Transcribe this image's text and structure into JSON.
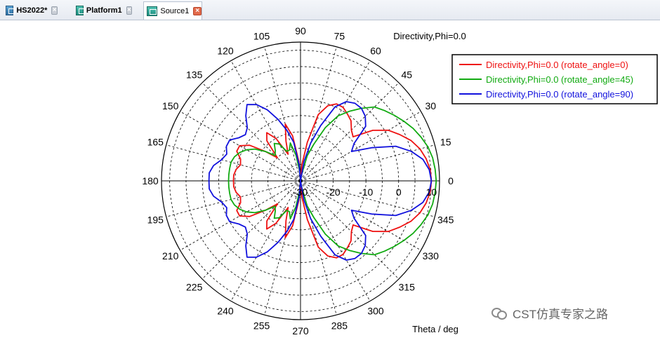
{
  "tabs": [
    {
      "label": "HS2022*",
      "icon": "project-icon",
      "close": "×"
    },
    {
      "label": "Platform1",
      "icon": "platform-icon",
      "close": "×"
    },
    {
      "label": "Source1",
      "icon": "source-icon",
      "close": "×"
    }
  ],
  "watermark": {
    "text": "CST仿真专家之路",
    "icon": "wechat-icon"
  },
  "chart_data": {
    "type": "polar-line",
    "title": "Directivity,Phi=0.0",
    "xlabel": "Theta / deg",
    "angle_ticks": [
      0,
      15,
      30,
      45,
      60,
      75,
      90,
      105,
      120,
      135,
      150,
      165,
      180,
      195,
      210,
      225,
      240,
      255,
      270,
      285,
      300,
      315,
      330,
      345
    ],
    "radial_ticks": [
      -30,
      -20,
      -10,
      0,
      10
    ],
    "rlim": [
      -30,
      12.5
    ],
    "grid": true,
    "legend_position": "top-right",
    "series": [
      {
        "name": "Directivity,Phi=0.0 (rotate_angle=0)",
        "color": "#ee1111",
        "theta": [
          0,
          5,
          10,
          15,
          20,
          25,
          30,
          35,
          40,
          45,
          50,
          55,
          60,
          65,
          70,
          75,
          80,
          85,
          90,
          95,
          100,
          105,
          110,
          115,
          120,
          125,
          130,
          135,
          140,
          145,
          150,
          155,
          160,
          165,
          170,
          175,
          180
        ],
        "values": [
          10,
          9.8,
          9,
          7.8,
          6,
          3.5,
          1,
          -3,
          -9,
          -8,
          -6,
          -5,
          -4,
          -4,
          -5.5,
          -9,
          -18,
          -25,
          -30,
          -24,
          -16,
          -12,
          -17,
          -21,
          -15,
          -12,
          -14,
          -20,
          -16,
          -11,
          -8.5,
          -8.5,
          -10.5,
          -11,
          -10,
          -9.5,
          -9.5
        ]
      },
      {
        "name": "Directivity,Phi=0.0 (rotate_angle=45)",
        "color": "#11aa11",
        "theta": [
          0,
          5,
          10,
          15,
          20,
          25,
          30,
          35,
          40,
          45,
          50,
          55,
          60,
          65,
          70,
          75,
          80,
          85,
          90,
          95,
          100,
          105,
          110,
          115,
          120,
          125,
          130,
          135,
          140,
          145,
          150,
          155,
          160,
          165,
          170,
          175,
          180
        ],
        "values": [
          11.5,
          11.3,
          11,
          10.3,
          9.2,
          8,
          6.5,
          5,
          3.5,
          2,
          -1,
          -4,
          -7,
          -12,
          -18,
          -22,
          -28,
          -30,
          -30,
          -27,
          -22,
          -18,
          -20,
          -20,
          -17,
          -16,
          -18,
          -19,
          -16,
          -13,
          -11,
          -9.5,
          -8.5,
          -8,
          -8,
          -8,
          -8
        ]
      },
      {
        "name": "Directivity,Phi=0.0 (rotate_angle=90)",
        "color": "#1111dd",
        "theta": [
          0,
          5,
          10,
          15,
          20,
          25,
          30,
          35,
          40,
          45,
          50,
          55,
          60,
          65,
          70,
          75,
          80,
          85,
          90,
          95,
          100,
          105,
          110,
          115,
          120,
          125,
          130,
          135,
          140,
          145,
          150,
          155,
          160,
          165,
          170,
          175,
          180
        ],
        "values": [
          10,
          9.5,
          8,
          5,
          1,
          -6,
          -12,
          -10,
          -4,
          -2,
          -1,
          -1,
          -2,
          -5,
          -12,
          -18,
          -24,
          -30,
          -30,
          -25,
          -18,
          -14,
          -10,
          -6,
          -3,
          -1.5,
          -4,
          -7,
          -8,
          -7,
          -5,
          -5,
          -6,
          -5,
          -3,
          -2,
          -2
        ]
      }
    ]
  }
}
